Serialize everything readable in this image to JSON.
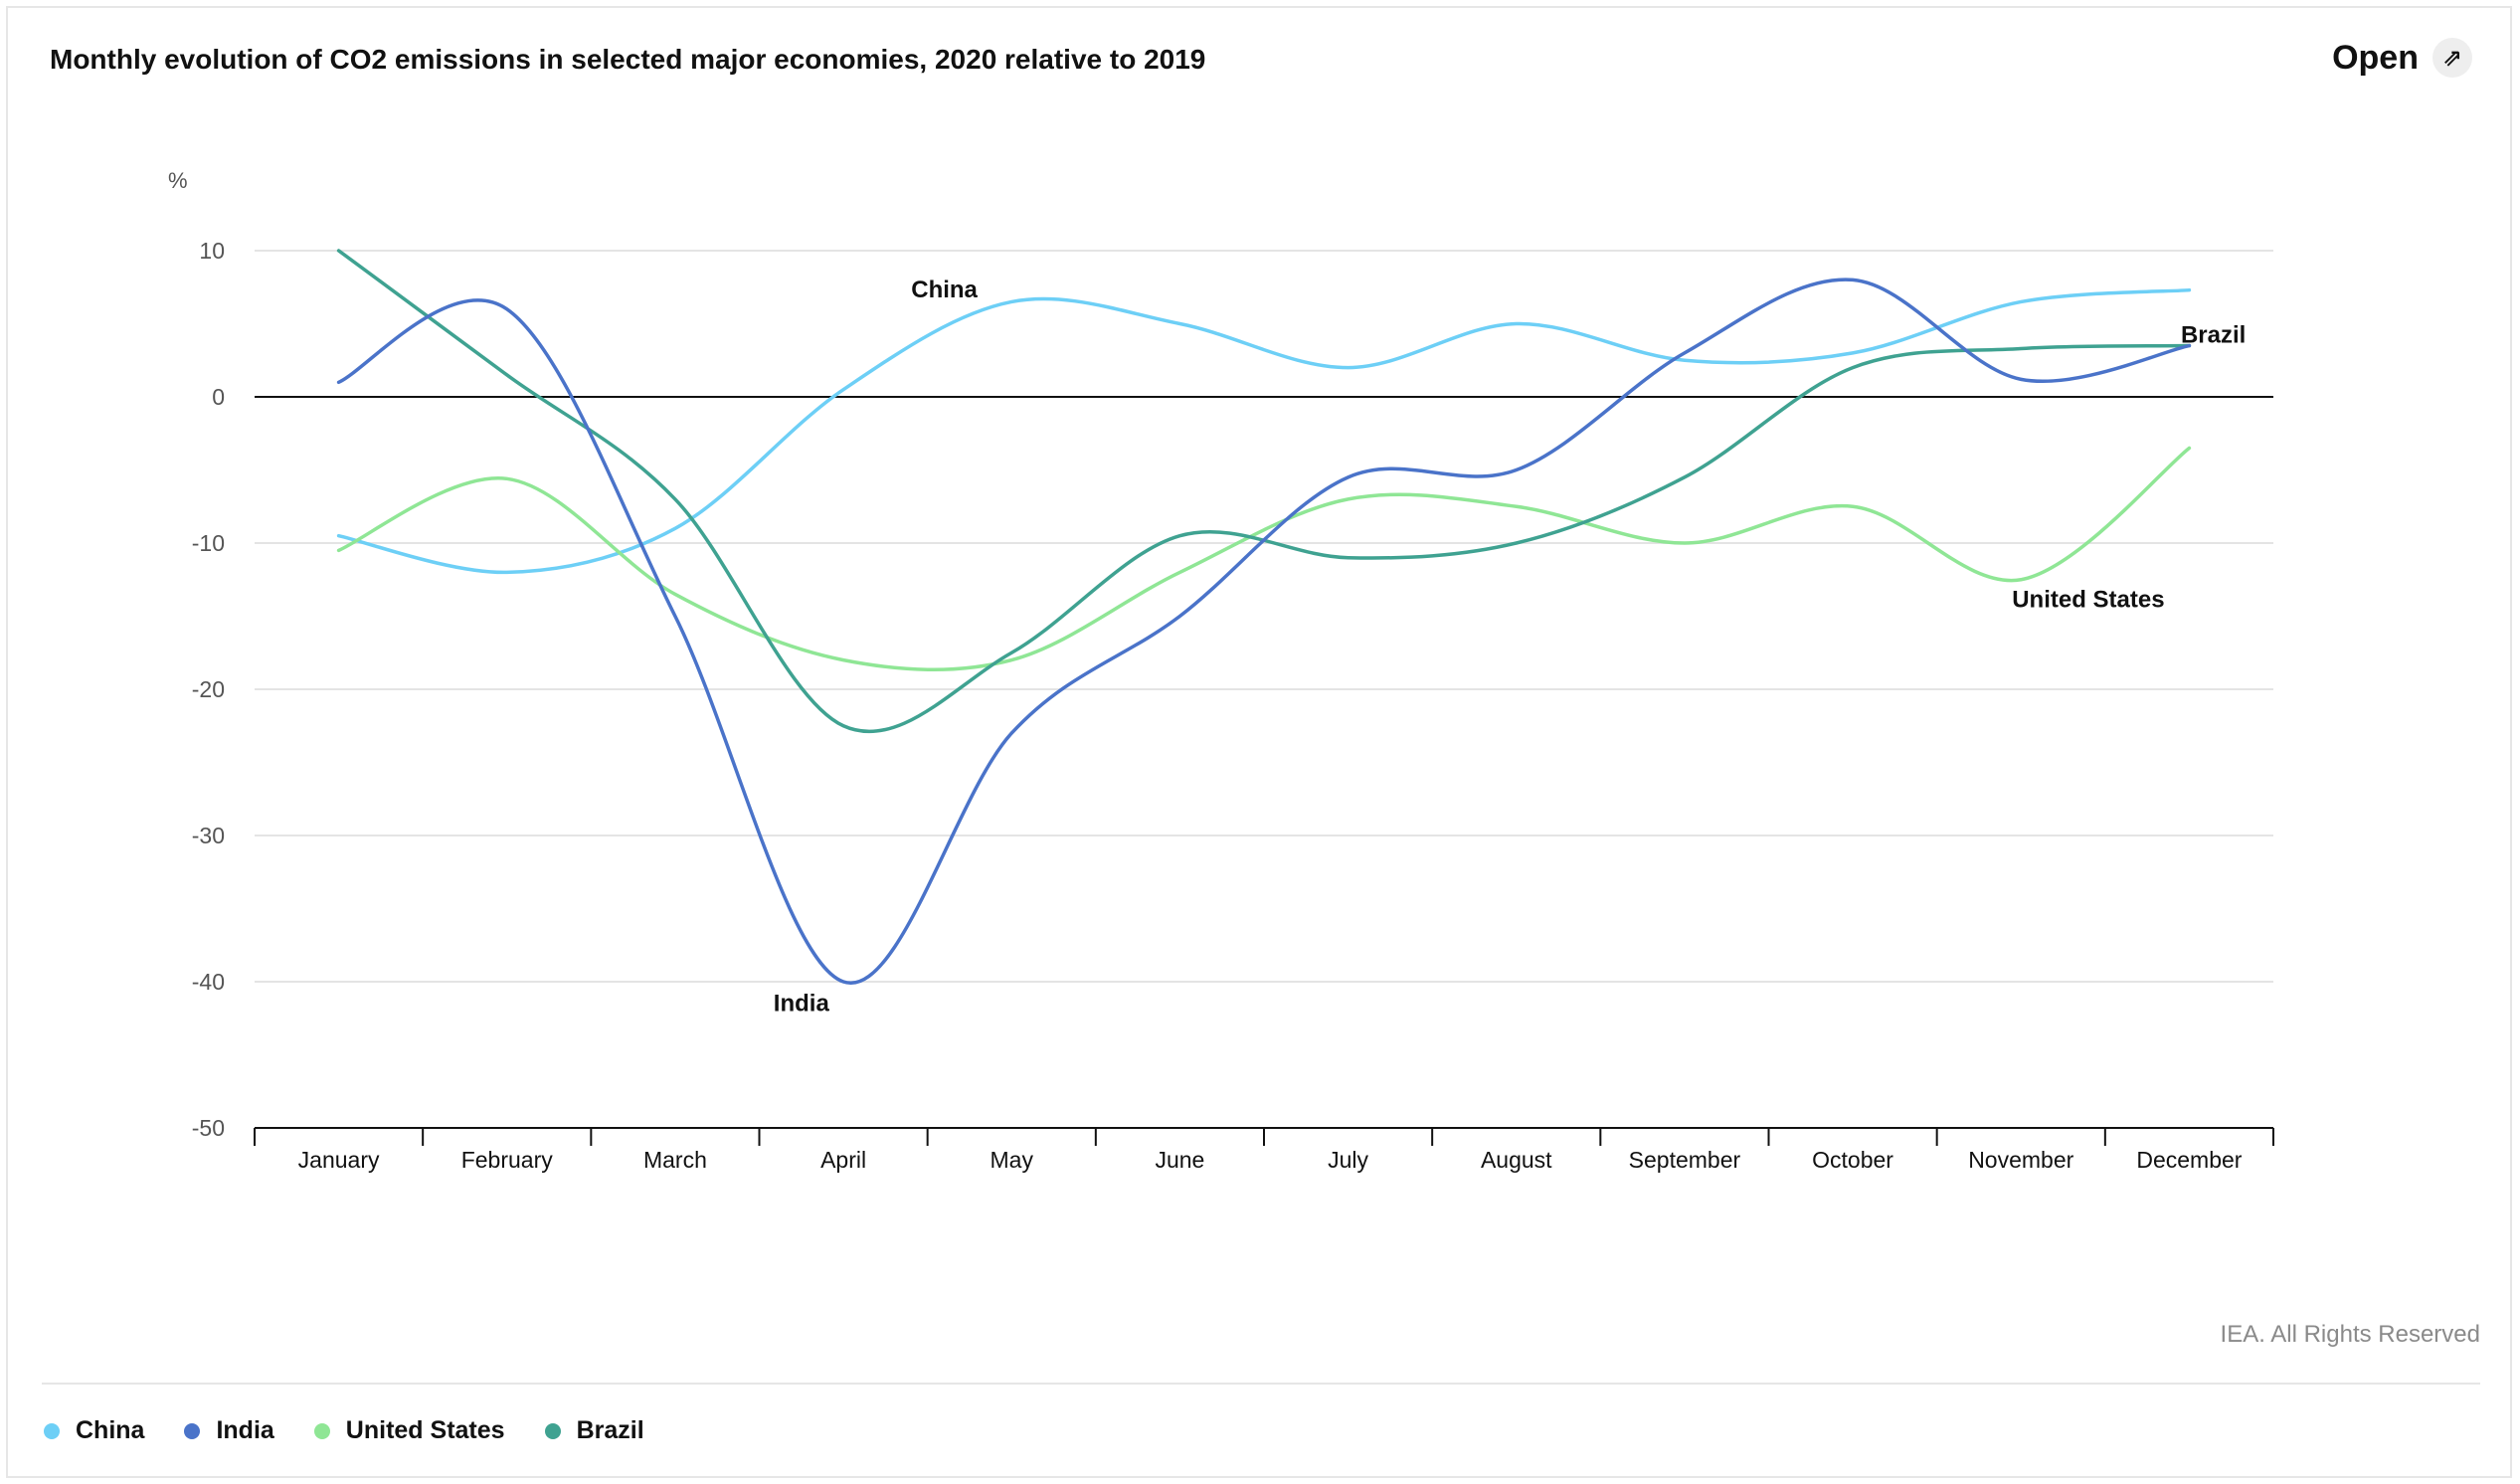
{
  "title": "Monthly evolution of CO2 emissions in selected major economies, 2020 relative to 2019",
  "open_label": "Open",
  "open_icon": "external-link-icon",
  "credit": "IEA. All Rights Reserved",
  "chart_data": {
    "type": "line",
    "title": "Monthly evolution of CO2 emissions in selected major economies, 2020 relative to 2019",
    "ylabel": "%",
    "xlabel": "",
    "ylim": [
      -50,
      10
    ],
    "yticks": [
      10,
      0,
      -10,
      -20,
      -30,
      -40,
      -50
    ],
    "categories": [
      "January",
      "February",
      "March",
      "April",
      "May",
      "June",
      "July",
      "August",
      "September",
      "October",
      "November",
      "December"
    ],
    "series": [
      {
        "name": "China",
        "color": "#6dcff6",
        "label": "China",
        "values": [
          -9.5,
          -12,
          -9,
          0.5,
          6.5,
          5,
          2,
          5,
          2.5,
          3,
          6.5,
          7.3
        ]
      },
      {
        "name": "India",
        "color": "#4a73c9",
        "label": "India",
        "values": [
          1,
          6,
          -15,
          -40,
          -23,
          -15,
          -5.5,
          -5,
          3,
          8,
          1.2,
          3.5
        ]
      },
      {
        "name": "United States",
        "color": "#8fe695",
        "label": "United States",
        "values": [
          -10.5,
          -5.6,
          -13.5,
          -18,
          -18,
          -12,
          -7,
          -7.5,
          -10,
          -7.5,
          -12.5,
          -3.5
        ]
      },
      {
        "name": "Brazil",
        "color": "#3fa291",
        "label": "Brazil",
        "values": [
          10,
          1.5,
          -7,
          -22.5,
          -17.5,
          -9.5,
          -11,
          -10,
          -5.5,
          2,
          3.3,
          3.5
        ]
      }
    ],
    "legend": [
      "China",
      "India",
      "United States",
      "Brazil"
    ],
    "legend_position": "bottom-left"
  }
}
